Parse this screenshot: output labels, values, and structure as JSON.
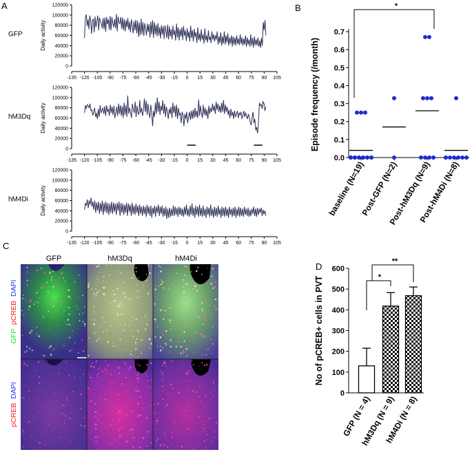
{
  "panel_letters": {
    "a": "A",
    "b": "B",
    "c": "C",
    "d": "D"
  },
  "chart_data": [
    {
      "type": "line",
      "panel": "A",
      "title": "GFP",
      "ylabel": "Daily activity",
      "yticks": [
        "0",
        "20000",
        "40000",
        "60000",
        "80000",
        "100000",
        "120000"
      ],
      "ylim": [
        0,
        120000
      ],
      "xticks": [
        "-135",
        "-120",
        "-105",
        "-90",
        "-75",
        "-60",
        "-45",
        "-30",
        "-15",
        "0",
        "15",
        "30",
        "45",
        "60",
        "75",
        "90",
        "105"
      ],
      "xlim": [
        -135,
        105
      ],
      "color": "#2b2d55",
      "x_start": -120,
      "values": [
        55000,
        95000,
        101000,
        78000,
        92000,
        72000,
        99000,
        88000,
        63000,
        90000,
        92000,
        66000,
        97000,
        76000,
        88000,
        99000,
        70000,
        95000,
        87000,
        84000,
        74000,
        94000,
        72000,
        95000,
        67000,
        96000,
        82000,
        92000,
        71000,
        98000,
        70000,
        96000,
        84000,
        76000,
        92000,
        74000,
        102000,
        68000,
        97000,
        85000,
        83000,
        96000,
        73000,
        95000,
        70000,
        92000,
        68000,
        90000,
        76000,
        94000,
        71000,
        87000,
        66000,
        92000,
        78000,
        64000,
        88000,
        70000,
        91000,
        64000,
        89000,
        57000,
        85000,
        60000,
        93000,
        62000,
        86000,
        59000,
        84000,
        74000,
        60000,
        83000,
        67000,
        82000,
        56000,
        87000,
        62000,
        90000,
        55000,
        86000,
        62000,
        81000,
        58000,
        84000,
        60000,
        76000,
        54000,
        80000,
        62000,
        78000,
        53000,
        80000,
        68000,
        55000,
        81000,
        52000,
        78000,
        58000,
        72000,
        52000,
        79000,
        61000,
        70000,
        50000,
        83000,
        56000,
        76000,
        50000,
        72000,
        58000,
        76000,
        51000,
        78000,
        59000,
        70000,
        49000,
        74000,
        56000,
        68000,
        48000,
        79000,
        55000,
        70000,
        48000,
        73000,
        57000,
        66000,
        45000,
        76000,
        51000,
        64000,
        48000,
        72000,
        52000,
        62000,
        44000,
        74000,
        50000,
        60000,
        46000,
        70000,
        51000,
        58000,
        45000,
        68000,
        52000,
        62000,
        48000,
        60000,
        52000,
        68000,
        42000,
        58000,
        45000,
        66000,
        40000,
        58000,
        44000,
        68000,
        42000,
        60000,
        46000,
        64000,
        40000,
        56000,
        44000,
        60000,
        38000,
        58000,
        42000,
        56000,
        40000,
        60000,
        43000,
        54000,
        41000,
        62000,
        43000,
        56000,
        40000,
        54000,
        42000,
        60000,
        38000,
        56000,
        42000,
        52000,
        38000,
        62000,
        40000,
        55000,
        36000,
        58000,
        41000,
        52000,
        40000,
        56000,
        38000,
        50000,
        36000,
        55000,
        40000,
        86000,
        70000,
        90000,
        60000
      ]
    },
    {
      "type": "line",
      "panel": "A",
      "title": "hM3Dq",
      "ylabel": "Daily activity",
      "yticks": [
        "0",
        "20000",
        "40000",
        "60000",
        "80000",
        "100000",
        "120000"
      ],
      "ylim": [
        0,
        120000
      ],
      "xticks": [
        "-135",
        "-120",
        "-105",
        "-90",
        "-75",
        "-60",
        "-45",
        "-30",
        "-15",
        "0",
        "15",
        "30",
        "45",
        "60",
        "75",
        "90",
        "105"
      ],
      "xlim": [
        -135,
        105
      ],
      "color": "#2b2d55",
      "x_start": -120,
      "values": [
        70000,
        85000,
        78000,
        86000,
        84000,
        80000,
        88000,
        74000,
        76000,
        65000,
        72000,
        80000,
        62000,
        70000,
        58000,
        78000,
        62000,
        85000,
        70000,
        75000,
        80000,
        68000,
        83000,
        64000,
        85000,
        72000,
        78000,
        64000,
        86000,
        70000,
        82000,
        66000,
        84000,
        60000,
        70000,
        82000,
        64000,
        88000,
        68000,
        85000,
        64000,
        83000,
        60000,
        90000,
        66000,
        85000,
        62000,
        104000,
        68000,
        80000,
        72000,
        60000,
        88000,
        78000,
        70000,
        92000,
        62000,
        84000,
        72000,
        66000,
        95000,
        70000,
        80000,
        64000,
        74000,
        98000,
        72000,
        94000,
        66000,
        88000,
        70000,
        60000,
        86000,
        70000,
        44000,
        74000,
        62000,
        90000,
        68000,
        100000,
        72000,
        92000,
        66000,
        84000,
        74000,
        95000,
        68000,
        88000,
        62000,
        82000,
        72000,
        58000,
        78000,
        68000,
        82000,
        60000,
        90000,
        70000,
        84000,
        62000,
        86000,
        58000,
        80000,
        66000,
        70000,
        50000,
        72000,
        66000,
        44000,
        68000,
        58000,
        72000,
        50000,
        62000,
        72000,
        56000,
        74000,
        58000,
        76000,
        60000,
        80000,
        62000,
        74000,
        60000,
        96000,
        64000,
        84000,
        70000,
        60000,
        86000,
        66000,
        80000,
        64000,
        76000,
        58000,
        84000,
        68000,
        80000,
        72000,
        88000,
        74000,
        84000,
        68000,
        92000,
        76000,
        88000,
        72000,
        84000,
        70000,
        90000,
        72000,
        95000,
        68000,
        86000,
        72000,
        82000,
        66000,
        76000,
        60000,
        78000,
        64000,
        72000,
        58000,
        74000,
        62000,
        68000,
        74000,
        60000,
        70000,
        66000,
        72000,
        58000,
        66000,
        74000,
        62000,
        70000,
        64000,
        58000,
        68000,
        62000,
        52000,
        46000,
        60000,
        72000,
        50000,
        58000,
        36000,
        42000,
        30000,
        52000,
        90000,
        84000,
        86000,
        78000,
        92000,
        88000,
        74000,
        82000
      ],
      "annotation_bars": [
        {
          "start": 0,
          "end": 10
        },
        {
          "start": 78,
          "end": 88
        }
      ]
    },
    {
      "type": "line",
      "panel": "A",
      "title": "hM4Di",
      "ylabel": "Daily activity",
      "yticks": [
        "0",
        "20000",
        "40000",
        "60000",
        "80000",
        "100000",
        "120000"
      ],
      "ylim": [
        0,
        120000
      ],
      "xticks": [
        "-135",
        "-120",
        "-105",
        "-90",
        "-75",
        "-60",
        "-45",
        "-30",
        "-15",
        "0",
        "15",
        "30",
        "45",
        "60",
        "75",
        "90",
        "105"
      ],
      "xlim": [
        -135,
        105
      ],
      "color": "#2b2d55",
      "x_start": -120,
      "values": [
        42000,
        55000,
        50000,
        62000,
        45000,
        60000,
        52000,
        66000,
        48000,
        58000,
        42000,
        60000,
        36000,
        56000,
        40000,
        58000,
        34000,
        55000,
        38000,
        60000,
        32000,
        56000,
        38000,
        58000,
        35000,
        55000,
        32000,
        54000,
        36000,
        58000,
        34000,
        56000,
        38000,
        54000,
        32000,
        56000,
        40000,
        58000,
        30000,
        55000,
        36000,
        54000,
        32000,
        52000,
        36000,
        56000,
        30000,
        54000,
        38000,
        52000,
        30000,
        56000,
        34000,
        50000,
        32000,
        54000,
        36000,
        50000,
        30000,
        52000,
        34000,
        48000,
        30000,
        50000,
        34000,
        48000,
        28000,
        52000,
        34000,
        48000,
        30000,
        50000,
        26000,
        46000,
        34000,
        50000,
        28000,
        48000,
        36000,
        52000,
        30000,
        48000,
        34000,
        50000,
        28000,
        46000,
        30000,
        48000,
        24000,
        44000,
        26000,
        46000,
        28000,
        44000,
        30000,
        50000,
        30000,
        48000,
        32000,
        46000,
        28000,
        48000,
        32000,
        46000,
        30000,
        44000,
        28000,
        48000,
        32000,
        52000,
        30000,
        44000,
        28000,
        50000,
        32000,
        54000,
        30000,
        46000,
        26000,
        50000,
        32000,
        48000,
        28000,
        52000,
        30000,
        46000,
        28000,
        50000,
        30000,
        44000,
        26000,
        48000,
        32000,
        46000,
        28000,
        52000,
        30000,
        44000,
        26000,
        48000,
        30000,
        46000,
        28000,
        50000,
        32000,
        44000,
        26000,
        48000,
        30000,
        46000,
        28000,
        48000,
        30000,
        44000,
        26000,
        48000,
        32000,
        44000,
        28000,
        46000,
        30000,
        48000,
        26000,
        44000,
        30000,
        48000,
        28000,
        46000,
        30000,
        44000,
        28000,
        48000,
        32000,
        44000,
        30000,
        46000,
        28000,
        42000,
        30000,
        44000,
        34000,
        48000,
        30000,
        44000,
        28000,
        46000,
        32000,
        44000,
        36000,
        46000,
        30000,
        42000,
        34000,
        40000,
        30000
      ]
    },
    {
      "type": "scatter",
      "panel": "B",
      "title": "",
      "ylabel": "Episode frequency (/month)",
      "xlabel": "",
      "ylim": [
        0,
        0.7
      ],
      "yticks": [
        "0.0",
        "0.1",
        "0.2",
        "0.3",
        "0.4",
        "0.5",
        "0.6",
        "0.7"
      ],
      "categories": [
        "baseline (N=19)",
        "Post-GFP (N=2)",
        "Post-hM3Dq (N=9)",
        "Post-hM4Di (N=8)"
      ],
      "means": [
        0.04,
        0.17,
        0.26,
        0.04
      ],
      "points": [
        [
          0.25,
          0.25,
          0.25,
          0,
          0,
          0,
          0,
          0,
          0,
          0,
          0,
          0,
          0,
          0,
          0,
          0,
          0,
          0,
          0
        ],
        [
          0.33,
          0
        ],
        [
          0.67,
          0.67,
          0.33,
          0.33,
          0.33,
          0,
          0,
          0,
          0
        ],
        [
          0.33,
          0,
          0,
          0,
          0,
          0,
          0,
          0
        ]
      ],
      "point_color": "#1f2bd1",
      "significance": {
        "from": 0,
        "to": 2,
        "label": "*"
      }
    },
    {
      "type": "bar",
      "panel": "D",
      "title": "",
      "ylabel": "No of pCREB+ cells in PVT",
      "ylim": [
        0,
        600
      ],
      "yticks": [
        "0",
        "100",
        "200",
        "300",
        "400",
        "500",
        "600"
      ],
      "categories": [
        "GFP (N = 4)",
        "hM3Dq (N = 9)",
        "hM4Di (N = 8)"
      ],
      "values": [
        130,
        418,
        468
      ],
      "errors": [
        85,
        65,
        42
      ],
      "fills": [
        "white",
        "checker",
        "checker"
      ],
      "significance": [
        {
          "from": 0,
          "to": 1,
          "label": "*"
        },
        {
          "from": 0,
          "to": 2,
          "label": "**"
        }
      ]
    }
  ],
  "micrographs": {
    "columns": [
      "GFP",
      "hM3Dq",
      "hM4Di"
    ],
    "row_labels": [
      [
        {
          "text": "GFP",
          "color": "#22dd22"
        },
        {
          "text": "pCREB",
          "color": "#ee2222"
        },
        {
          "text": "DAPI",
          "color": "#2233ee"
        }
      ],
      [
        {
          "text": "pCREB",
          "color": "#ee2222"
        },
        {
          "text": "DAPI",
          "color": "#2233ee"
        }
      ]
    ]
  }
}
